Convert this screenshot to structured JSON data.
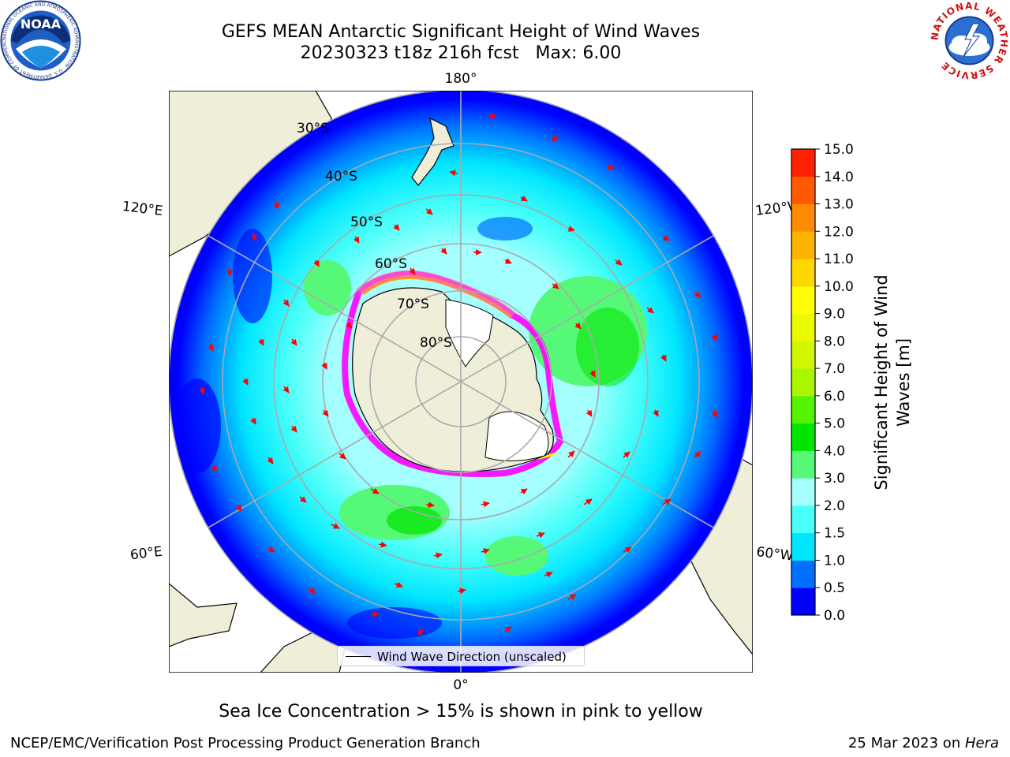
{
  "header": {
    "title_line1": "GEFS MEAN Antarctic Significant Height of Wind Waves",
    "title_line2": "20230323 t18z 216h fcst   Max: 6.00"
  },
  "logos": {
    "noaa_text": "NOAA",
    "noaa_ring_text": "NATIONAL OCEANIC AND ATMOSPHERIC ADMINISTRATION · U.S. DEPARTMENT OF COMMERCE",
    "nws_ring_text": "NATIONAL WEATHER SERVICE"
  },
  "map": {
    "projection": "south-polar-stereographic",
    "longitude_labels": {
      "top": "180°",
      "bottom": "0°",
      "upper_left": "120°E",
      "upper_right": "120°W",
      "lower_left": "60°E",
      "lower_right": "60°W"
    },
    "latitude_labels": [
      "30°S",
      "40°S",
      "50°S",
      "60°S",
      "70°S",
      "80°S"
    ],
    "legend_label": "Wind Wave Direction (unscaled)",
    "arrow_color": "#ff0000",
    "land_color": "#efeed9",
    "ice_colors": [
      "#ff00ff",
      "#ff69b4",
      "#ffa500",
      "#ffff00"
    ]
  },
  "colorbar": {
    "title_line1": "Significant Height of Wind",
    "title_line2": "Waves [m]",
    "ticks": [
      "0.0",
      "0.5",
      "1.0",
      "1.5",
      "2.0",
      "3.0",
      "4.0",
      "5.0",
      "6.0",
      "7.0",
      "8.0",
      "9.0",
      "10.0",
      "11.0",
      "12.0",
      "13.0",
      "14.0",
      "15.0"
    ],
    "colors": [
      "#0000ff",
      "#0070ff",
      "#00e6ff",
      "#49fff9",
      "#a6ffff",
      "#55f977",
      "#00e600",
      "#55f300",
      "#aaf500",
      "#d2f600",
      "#ecfa00",
      "#ffff00",
      "#ffd700",
      "#ffb400",
      "#ff8c00",
      "#ff5a00",
      "#ff2200"
    ]
  },
  "notes": {
    "ice_note": "Sea Ice Concentration > 15% is shown in pink to yellow",
    "footer_left": "NCEP/EMC/Verification Post Processing Product Generation Branch",
    "footer_right_date": "25 Mar 2023 on ",
    "footer_right_host": "Hera"
  }
}
